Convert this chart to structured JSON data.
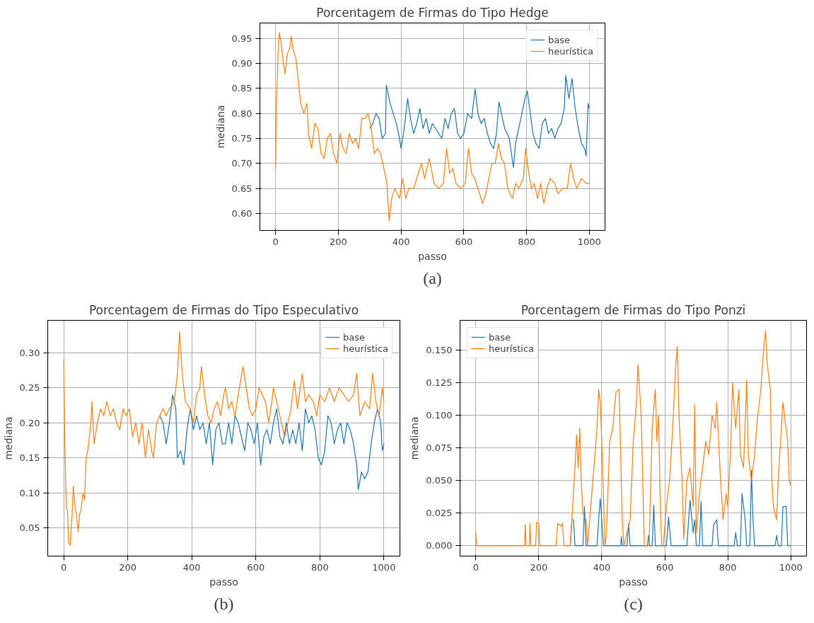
{
  "chart_data": [
    {
      "type": "line",
      "title": "Porcentagem de Firmas do Tipo Hedge",
      "xlabel": "passo",
      "ylabel": "mediana",
      "annotations": [
        "(a)"
      ],
      "xlim": [
        -50,
        1050
      ],
      "ylim": [
        0.566,
        0.981
      ],
      "xticks": [
        0,
        200,
        400,
        600,
        800,
        1000
      ],
      "yticks": [
        {
          "value": 0.6,
          "label": "0.60"
        },
        0.65,
        {
          "value": 0.7,
          "label": "0.70"
        },
        0.75,
        {
          "value": 0.8,
          "label": "0.80"
        },
        0.85,
        {
          "value": 0.9,
          "label": "0.90"
        },
        0.95
      ],
      "grid": true,
      "legend": "top right",
      "marker": "none",
      "line_style": "solid",
      "series": [
        {
          "name": "base",
          "color": "#1f77b4",
          "x": [
            300,
            310,
            320,
            330,
            340,
            350,
            353,
            365,
            375,
            385,
            395,
            400,
            410,
            421,
            430,
            440,
            450,
            460,
            470,
            480,
            490,
            500,
            510,
            520,
            530,
            540,
            550,
            560,
            570,
            580,
            590,
            600,
            612,
            625,
            636,
            645,
            655,
            665,
            675,
            685,
            695,
            704,
            712,
            720,
            730,
            745,
            758,
            765,
            775,
            785,
            795,
            802,
            810,
            820,
            830,
            840,
            850,
            860,
            870,
            880,
            890,
            900,
            910,
            920,
            925,
            935,
            945,
            955,
            965,
            975,
            985,
            990,
            996,
            1000
          ],
          "values": [
            0.77,
            0.78,
            0.8,
            0.79,
            0.75,
            0.76,
            0.857,
            0.82,
            0.8,
            0.78,
            0.75,
            0.73,
            0.77,
            0.83,
            0.79,
            0.76,
            0.78,
            0.81,
            0.77,
            0.79,
            0.76,
            0.78,
            0.77,
            0.76,
            0.75,
            0.79,
            0.77,
            0.8,
            0.81,
            0.76,
            0.75,
            0.76,
            0.8,
            0.79,
            0.849,
            0.8,
            0.78,
            0.79,
            0.76,
            0.74,
            0.73,
            0.76,
            0.823,
            0.8,
            0.77,
            0.75,
            0.692,
            0.74,
            0.77,
            0.8,
            0.83,
            0.845,
            0.81,
            0.76,
            0.74,
            0.73,
            0.78,
            0.79,
            0.76,
            0.77,
            0.75,
            0.77,
            0.78,
            0.81,
            0.876,
            0.83,
            0.87,
            0.81,
            0.77,
            0.74,
            0.73,
            0.715,
            0.82,
            0.81
          ]
        },
        {
          "name": "heurística",
          "color": "#ff7f0e",
          "x": [
            0,
            3,
            8,
            12,
            18,
            25,
            30,
            38,
            45,
            50,
            55,
            65,
            75,
            80,
            90,
            100,
            105,
            115,
            125,
            135,
            145,
            155,
            165,
            175,
            185,
            195,
            205,
            215,
            225,
            235,
            245,
            255,
            265,
            275,
            285,
            295,
            305,
            315,
            325,
            335,
            345,
            355,
            362,
            370,
            380,
            395,
            405,
            415,
            425,
            440,
            455,
            465,
            475,
            490,
            505,
            520,
            535,
            545,
            555,
            565,
            575,
            590,
            605,
            610,
            615,
            625,
            635,
            650,
            660,
            670,
            680,
            690,
            700,
            710,
            720,
            730,
            740,
            755,
            765,
            775,
            790,
            797,
            805,
            815,
            825,
            835,
            845,
            855,
            865,
            875,
            890,
            900,
            915,
            930,
            940,
            950,
            960,
            975,
            990,
            1000
          ],
          "values": [
            0.69,
            0.82,
            0.92,
            0.962,
            0.94,
            0.9,
            0.88,
            0.92,
            0.93,
            0.955,
            0.93,
            0.91,
            0.85,
            0.82,
            0.8,
            0.82,
            0.76,
            0.73,
            0.78,
            0.77,
            0.72,
            0.71,
            0.75,
            0.76,
            0.72,
            0.7,
            0.76,
            0.73,
            0.72,
            0.76,
            0.74,
            0.75,
            0.73,
            0.79,
            0.79,
            0.8,
            0.77,
            0.72,
            0.73,
            0.72,
            0.69,
            0.66,
            0.585,
            0.63,
            0.65,
            0.63,
            0.67,
            0.63,
            0.65,
            0.65,
            0.68,
            0.7,
            0.67,
            0.71,
            0.66,
            0.65,
            0.66,
            0.73,
            0.68,
            0.69,
            0.66,
            0.65,
            0.66,
            0.7,
            0.73,
            0.68,
            0.67,
            0.64,
            0.62,
            0.64,
            0.67,
            0.7,
            0.7,
            0.74,
            0.71,
            0.7,
            0.65,
            0.63,
            0.66,
            0.65,
            0.67,
            0.73,
            0.69,
            0.65,
            0.66,
            0.63,
            0.66,
            0.62,
            0.65,
            0.67,
            0.66,
            0.64,
            0.65,
            0.65,
            0.7,
            0.67,
            0.65,
            0.67,
            0.66,
            0.66
          ]
        }
      ]
    },
    {
      "type": "line",
      "title": "Porcentagem de Firmas do Tipo Especulativo",
      "xlabel": "passo",
      "ylabel": "mediana",
      "annotations": [
        "(b)"
      ],
      "xlim": [
        -50,
        1050
      ],
      "ylim": [
        0.01,
        0.346
      ],
      "xticks": [
        0,
        200,
        400,
        600,
        800,
        1000
      ],
      "yticks": [
        0.05,
        {
          "value": 0.1,
          "label": "0.10"
        },
        0.15,
        {
          "value": 0.2,
          "label": "0.20"
        },
        0.25,
        {
          "value": 0.3,
          "label": "0.30"
        }
      ],
      "grid": true,
      "legend": "top right",
      "marker": "none",
      "line_style": "solid",
      "series": [
        {
          "name": "base",
          "color": "#1f77b4",
          "x": [
            300,
            310,
            320,
            330,
            340,
            350,
            355,
            365,
            375,
            385,
            395,
            405,
            415,
            425,
            435,
            445,
            455,
            465,
            475,
            485,
            495,
            505,
            515,
            525,
            535,
            545,
            555,
            565,
            575,
            585,
            595,
            605,
            615,
            625,
            635,
            645,
            655,
            665,
            675,
            685,
            695,
            705,
            715,
            725,
            735,
            745,
            755,
            765,
            775,
            785,
            795,
            805,
            815,
            825,
            835,
            845,
            855,
            865,
            875,
            885,
            895,
            905,
            915,
            920,
            930,
            940,
            950,
            960,
            970,
            980,
            990,
            995,
            1000
          ],
          "values": [
            0.21,
            0.2,
            0.17,
            0.2,
            0.24,
            0.22,
            0.15,
            0.16,
            0.14,
            0.19,
            0.22,
            0.19,
            0.21,
            0.19,
            0.2,
            0.17,
            0.2,
            0.14,
            0.19,
            0.2,
            0.17,
            0.17,
            0.2,
            0.17,
            0.21,
            0.2,
            0.18,
            0.16,
            0.2,
            0.19,
            0.17,
            0.2,
            0.14,
            0.18,
            0.19,
            0.17,
            0.2,
            0.22,
            0.18,
            0.17,
            0.2,
            0.17,
            0.19,
            0.17,
            0.2,
            0.16,
            0.22,
            0.2,
            0.21,
            0.19,
            0.15,
            0.14,
            0.16,
            0.21,
            0.2,
            0.17,
            0.19,
            0.2,
            0.17,
            0.2,
            0.19,
            0.17,
            0.14,
            0.105,
            0.13,
            0.12,
            0.13,
            0.17,
            0.2,
            0.22,
            0.2,
            0.16,
            0.17
          ]
        },
        {
          "name": "heurística",
          "color": "#ff7f0e",
          "x": [
            0,
            3,
            8,
            12,
            15,
            20,
            25,
            30,
            35,
            40,
            45,
            50,
            55,
            60,
            65,
            70,
            75,
            85,
            88,
            95,
            105,
            115,
            125,
            135,
            145,
            155,
            165,
            175,
            185,
            195,
            205,
            215,
            225,
            235,
            245,
            255,
            265,
            275,
            280,
            290,
            300,
            310,
            320,
            330,
            345,
            355,
            362,
            370,
            380,
            395,
            405,
            415,
            425,
            430,
            440,
            450,
            460,
            470,
            480,
            490,
            500,
            505,
            515,
            525,
            535,
            545,
            560,
            570,
            580,
            590,
            600,
            610,
            620,
            630,
            640,
            650,
            655,
            665,
            680,
            690,
            700,
            710,
            720,
            730,
            745,
            755,
            765,
            780,
            790,
            800,
            815,
            830,
            845,
            860,
            875,
            890,
            905,
            915,
            925,
            940,
            955,
            965,
            975,
            985,
            995,
            1000
          ],
          "values": [
            0.29,
            0.18,
            0.08,
            0.075,
            0.03,
            0.025,
            0.06,
            0.11,
            0.08,
            0.07,
            0.045,
            0.07,
            0.08,
            0.1,
            0.09,
            0.15,
            0.16,
            0.2,
            0.23,
            0.17,
            0.2,
            0.22,
            0.21,
            0.23,
            0.21,
            0.22,
            0.2,
            0.19,
            0.22,
            0.21,
            0.22,
            0.18,
            0.2,
            0.17,
            0.2,
            0.15,
            0.19,
            0.16,
            0.15,
            0.2,
            0.21,
            0.22,
            0.21,
            0.22,
            0.23,
            0.27,
            0.33,
            0.27,
            0.23,
            0.22,
            0.2,
            0.24,
            0.25,
            0.28,
            0.24,
            0.21,
            0.2,
            0.22,
            0.23,
            0.21,
            0.24,
            0.25,
            0.22,
            0.23,
            0.21,
            0.24,
            0.28,
            0.25,
            0.22,
            0.21,
            0.22,
            0.25,
            0.24,
            0.23,
            0.2,
            0.23,
            0.25,
            0.23,
            0.2,
            0.18,
            0.2,
            0.22,
            0.26,
            0.22,
            0.27,
            0.23,
            0.24,
            0.23,
            0.21,
            0.24,
            0.23,
            0.25,
            0.23,
            0.25,
            0.24,
            0.23,
            0.24,
            0.27,
            0.21,
            0.23,
            0.22,
            0.27,
            0.23,
            0.21,
            0.25,
            0.23
          ]
        }
      ]
    },
    {
      "type": "line",
      "title": "Porcentagem de Firmas do Tipo Ponzi",
      "xlabel": "passo",
      "ylabel": "mediana",
      "annotations": [
        "(c)"
      ],
      "xlim": [
        -50,
        1050
      ],
      "ylim": [
        -0.008,
        0.173
      ],
      "xticks": [
        0,
        200,
        400,
        600,
        800,
        1000
      ],
      "yticks": [
        {
          "value": 0,
          "label": "0.000"
        },
        0.025,
        {
          "value": 0.05,
          "label": "0.050"
        },
        0.075,
        {
          "value": 0.1,
          "label": "0.100"
        },
        0.125,
        {
          "value": 0.15,
          "label": "0.150"
        }
      ],
      "grid": true,
      "legend": "top left",
      "marker": "none",
      "line_style": "solid",
      "series": [
        {
          "name": "base",
          "color": "#1f77b4",
          "x": [
            300,
            305,
            310,
            315,
            340,
            345,
            350,
            385,
            390,
            395,
            400,
            405,
            460,
            462,
            465,
            480,
            485,
            490,
            545,
            548,
            552,
            560,
            565,
            570,
            605,
            612,
            620,
            670,
            680,
            690,
            695,
            700,
            710,
            715,
            720,
            750,
            755,
            765,
            770,
            820,
            825,
            830,
            840,
            845,
            855,
            860,
            870,
            875,
            880,
            885,
            950,
            955,
            960,
            970,
            975,
            985,
            990,
            1000
          ],
          "values": [
            0,
            0.02,
            0.02,
            0,
            0,
            0.03,
            0,
            0,
            0.02,
            0.036,
            0.02,
            0,
            0,
            0.007,
            0,
            0,
            0.017,
            0,
            0,
            0.008,
            0,
            0,
            0.031,
            0,
            0,
            0.022,
            0,
            0,
            0.035,
            0.01,
            0.02,
            0,
            0,
            0.034,
            0,
            0,
            0.016,
            0.02,
            0,
            0,
            0.01,
            0,
            0,
            0.04,
            0.02,
            0,
            0,
            0.058,
            0.02,
            0,
            0,
            0.008,
            0,
            0,
            0.03,
            0.03,
            0,
            0
          ]
        },
        {
          "name": "heurística",
          "color": "#ff7f0e",
          "x": [
            0,
            2,
            155,
            157,
            160,
            170,
            172,
            175,
            190,
            193,
            200,
            203,
            255,
            260,
            270,
            275,
            280,
            300,
            305,
            315,
            320,
            325,
            330,
            335,
            340,
            350,
            355,
            365,
            375,
            385,
            390,
            395,
            400,
            405,
            410,
            415,
            425,
            435,
            445,
            455,
            460,
            465,
            470,
            480,
            490,
            500,
            510,
            515,
            520,
            525,
            530,
            535,
            550,
            560,
            570,
            575,
            580,
            585,
            590,
            595,
            605,
            615,
            625,
            635,
            640,
            645,
            655,
            660,
            670,
            680,
            690,
            695,
            700,
            710,
            720,
            730,
            740,
            750,
            760,
            765,
            775,
            780,
            785,
            795,
            800,
            810,
            815,
            825,
            835,
            840,
            850,
            860,
            865,
            875,
            885,
            895,
            905,
            915,
            920,
            925,
            935,
            940,
            945,
            955,
            960,
            970,
            975,
            985,
            990,
            995,
            1000
          ],
          "values": [
            0.01,
            0,
            0,
            0.016,
            0,
            0,
            0.017,
            0,
            0,
            0.018,
            0.017,
            0,
            0,
            0.017,
            0.015,
            0.017,
            0,
            0,
            0.02,
            0.06,
            0.085,
            0.06,
            0.09,
            0.05,
            0.025,
            0.02,
            0,
            0.03,
            0.06,
            0.09,
            0.12,
            0.11,
            0.08,
            0.04,
            0,
            0.01,
            0.08,
            0.09,
            0.118,
            0.12,
            0.07,
            0.02,
            0,
            0.01,
            0.02,
            0.08,
            0.11,
            0.139,
            0.12,
            0.1,
            0.05,
            0,
            0,
            0.09,
            0.12,
            0.08,
            0.1,
            0.04,
            0,
            0,
            0.03,
            0.05,
            0.09,
            0.14,
            0.153,
            0.1,
            0.05,
            0.005,
            0.05,
            0.06,
            0.03,
            0.108,
            0.01,
            0.04,
            0.06,
            0.08,
            0.07,
            0.1,
            0.09,
            0.11,
            0.06,
            0.04,
            0.02,
            0.04,
            0.03,
            0.08,
            0.125,
            0.09,
            0.12,
            0.07,
            0.06,
            0.127,
            0.07,
            0.05,
            0.07,
            0.1,
            0.12,
            0.155,
            0.165,
            0.14,
            0.12,
            0.05,
            0.03,
            0.02,
            0.05,
            0.09,
            0.11,
            0.09,
            0.08,
            0.05,
            0.046
          ]
        }
      ]
    }
  ]
}
